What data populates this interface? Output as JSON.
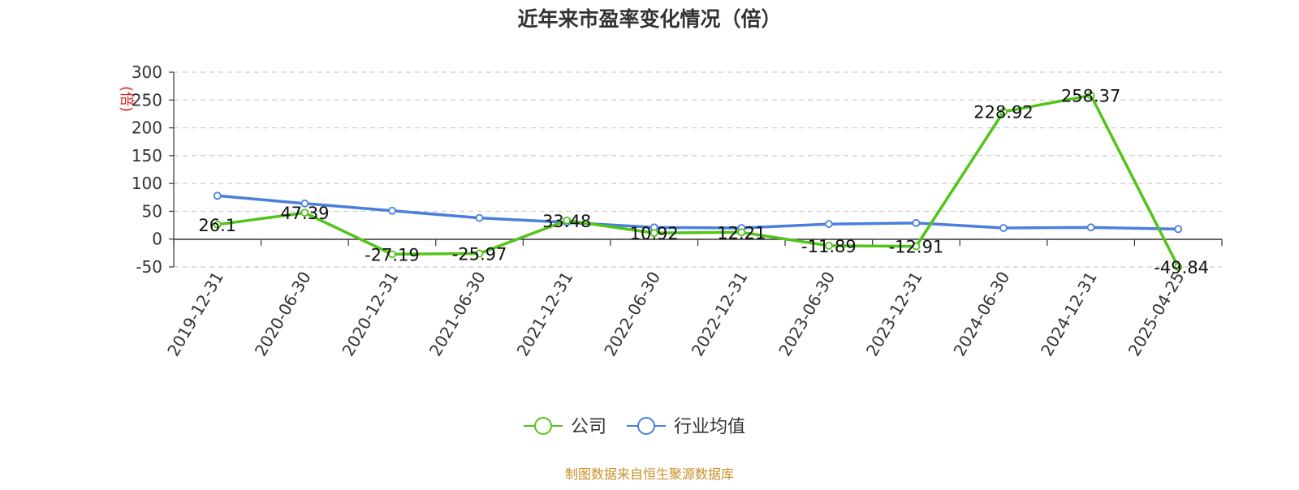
{
  "chart_data": {
    "type": "line",
    "title": "近年来市盈率变化情况（倍）",
    "ylabel": "(倍)",
    "ylim": [
      -50,
      300
    ],
    "yticks": [
      300,
      250,
      200,
      150,
      100,
      50,
      0,
      -50
    ],
    "grid": true,
    "legend_position": "bottom",
    "categories": [
      "2019-12-31",
      "2020-06-30",
      "2020-12-31",
      "2021-06-30",
      "2021-12-31",
      "2022-06-30",
      "2022-12-31",
      "2023-06-30",
      "2023-12-31",
      "2024-06-30",
      "2024-12-31",
      "2025-04-25"
    ],
    "series": [
      {
        "name": "公司",
        "color": "#52c41a",
        "values": [
          26.1,
          47.39,
          -27.19,
          -25.97,
          33.48,
          10.92,
          12.21,
          -11.89,
          -12.91,
          228.92,
          258.37,
          -49.84
        ],
        "labels": [
          "26.1",
          "47.39",
          "-27.19",
          "-25.97",
          "33.48",
          "10.92",
          "12.21",
          "-11.89",
          "-12.91",
          "228.92",
          "258.37",
          "-49.84"
        ]
      },
      {
        "name": "行业均值",
        "color": "#4a7fdc",
        "values": [
          78,
          64,
          51,
          38,
          30,
          21,
          20,
          27,
          29,
          20,
          21,
          18
        ]
      }
    ],
    "source": "制图数据来自恒生聚源数据库",
    "unit_color": "#dd2222",
    "source_color": "#c8902a"
  }
}
